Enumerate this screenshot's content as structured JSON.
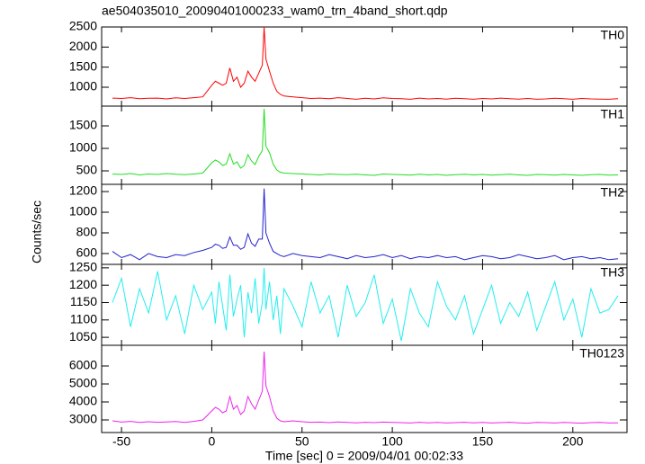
{
  "title": "ae504035010_20090401000233_wam0_trn_4band_short.qdp",
  "y_label": "Counts/sec",
  "x_label": "Time [sec] 0 = 2009/04/01 00:02:33",
  "chart_data": [
    {
      "type": "line",
      "label": "TH0",
      "color": "#ff0000",
      "x": [
        -55,
        -50,
        -45,
        -40,
        -35,
        -30,
        -25,
        -20,
        -15,
        -10,
        -5,
        0,
        2,
        4,
        6,
        8,
        10,
        12,
        14,
        16,
        18,
        20,
        22,
        24,
        26,
        28,
        29,
        30,
        32,
        34,
        36,
        38,
        40,
        45,
        50,
        55,
        60,
        65,
        70,
        75,
        80,
        85,
        90,
        95,
        100,
        105,
        110,
        115,
        120,
        125,
        130,
        135,
        140,
        145,
        150,
        155,
        160,
        165,
        170,
        175,
        180,
        185,
        190,
        195,
        200,
        205,
        210,
        215,
        220,
        225
      ],
      "values": [
        730,
        720,
        740,
        715,
        725,
        730,
        710,
        735,
        720,
        740,
        760,
        1050,
        1150,
        1100,
        1050,
        1100,
        1480,
        1150,
        1250,
        1000,
        1100,
        1400,
        1250,
        1150,
        1350,
        1550,
        2500,
        1700,
        1400,
        1100,
        900,
        820,
        780,
        760,
        740,
        720,
        730,
        715,
        740,
        720,
        700,
        725,
        710,
        735,
        720,
        715,
        700,
        730,
        710,
        720,
        705,
        725,
        715,
        700,
        720,
        710,
        730,
        715,
        705,
        720,
        700,
        710,
        725,
        715,
        700,
        720,
        710,
        705,
        700,
        715
      ],
      "xlim": [
        -61,
        230
      ],
      "xticks": [
        -50,
        0,
        50,
        100,
        150,
        200
      ],
      "ylim": [
        530,
        2500
      ],
      "yticks": [
        1000,
        1500,
        2000,
        2500
      ]
    },
    {
      "type": "line",
      "label": "TH1",
      "color": "#22dd22",
      "x": [
        -55,
        -50,
        -45,
        -40,
        -35,
        -30,
        -25,
        -20,
        -15,
        -10,
        -5,
        0,
        2,
        4,
        6,
        8,
        10,
        12,
        14,
        16,
        18,
        20,
        22,
        24,
        26,
        28,
        29,
        30,
        32,
        34,
        36,
        38,
        40,
        45,
        50,
        55,
        60,
        65,
        70,
        75,
        80,
        85,
        90,
        95,
        100,
        105,
        110,
        115,
        120,
        125,
        130,
        135,
        140,
        145,
        150,
        155,
        160,
        165,
        170,
        175,
        180,
        185,
        190,
        195,
        200,
        205,
        210,
        215,
        220,
        225
      ],
      "values": [
        430,
        420,
        440,
        410,
        430,
        420,
        440,
        425,
        415,
        430,
        450,
        680,
        740,
        700,
        620,
        650,
        880,
        650,
        700,
        560,
        620,
        860,
        720,
        640,
        820,
        950,
        1880,
        1050,
        900,
        650,
        520,
        470,
        450,
        440,
        430,
        420,
        410,
        430,
        420,
        415,
        425,
        410,
        400,
        430,
        420,
        415,
        405,
        425,
        410,
        420,
        400,
        415,
        425,
        410,
        420,
        405,
        415,
        425,
        410,
        400,
        420,
        415,
        405,
        420,
        410,
        400,
        415,
        420,
        405,
        410
      ],
      "xlim": [
        -61,
        230
      ],
      "xticks": [
        -50,
        0,
        50,
        100,
        150,
        200
      ],
      "ylim": [
        200,
        1940
      ],
      "yticks": [
        500,
        1000,
        1500
      ]
    },
    {
      "type": "line",
      "label": "TH2",
      "color": "#2222cc",
      "x": [
        -55,
        -50,
        -45,
        -40,
        -35,
        -30,
        -25,
        -20,
        -15,
        -10,
        -5,
        0,
        2,
        4,
        6,
        8,
        10,
        12,
        14,
        16,
        18,
        20,
        22,
        24,
        26,
        28,
        29,
        30,
        32,
        34,
        36,
        38,
        40,
        45,
        50,
        55,
        60,
        65,
        70,
        75,
        80,
        85,
        90,
        95,
        100,
        105,
        110,
        115,
        120,
        125,
        130,
        135,
        140,
        145,
        150,
        155,
        160,
        165,
        170,
        175,
        180,
        185,
        190,
        195,
        200,
        205,
        210,
        215,
        220,
        225
      ],
      "values": [
        620,
        560,
        590,
        540,
        600,
        570,
        560,
        590,
        580,
        610,
        630,
        660,
        690,
        680,
        650,
        660,
        760,
        680,
        680,
        640,
        660,
        790,
        700,
        670,
        740,
        740,
        1230,
        800,
        700,
        620,
        600,
        580,
        570,
        600,
        580,
        570,
        560,
        590,
        570,
        550,
        580,
        560,
        570,
        590,
        560,
        580,
        550,
        570,
        560,
        580,
        560,
        570,
        540,
        560,
        580,
        570,
        550,
        560,
        590,
        570,
        550,
        560,
        580,
        540,
        560,
        570,
        550,
        560,
        540,
        550
      ],
      "xlim": [
        -61,
        230
      ],
      "xticks": [
        -50,
        0,
        50,
        100,
        150,
        200
      ],
      "ylim": [
        495,
        1270
      ],
      "yticks": [
        600,
        800,
        1000,
        1200
      ]
    },
    {
      "type": "line",
      "label": "TH3",
      "color": "#22eeee",
      "x": [
        -55,
        -50,
        -45,
        -40,
        -35,
        -30,
        -25,
        -20,
        -15,
        -10,
        -5,
        0,
        2,
        4,
        6,
        8,
        10,
        12,
        14,
        16,
        18,
        20,
        22,
        24,
        26,
        28,
        29,
        30,
        32,
        34,
        36,
        38,
        40,
        45,
        50,
        55,
        60,
        65,
        70,
        75,
        80,
        85,
        90,
        95,
        100,
        105,
        110,
        115,
        120,
        125,
        130,
        135,
        140,
        145,
        150,
        155,
        160,
        165,
        170,
        175,
        180,
        185,
        190,
        195,
        200,
        205,
        210,
        215,
        220,
        225
      ],
      "values": [
        1150,
        1220,
        1080,
        1190,
        1120,
        1240,
        1100,
        1170,
        1060,
        1200,
        1130,
        1180,
        1090,
        1210,
        1140,
        1070,
        1230,
        1110,
        1160,
        1200,
        1050,
        1180,
        1120,
        1220,
        1090,
        1150,
        1250,
        1130,
        1210,
        1100,
        1170,
        1060,
        1190,
        1140,
        1080,
        1210,
        1120,
        1170,
        1050,
        1200,
        1110,
        1150,
        1230,
        1090,
        1160,
        1040,
        1190,
        1120,
        1080,
        1210,
        1140,
        1100,
        1170,
        1060,
        1130,
        1200,
        1090,
        1150,
        1110,
        1180,
        1070,
        1140,
        1210,
        1100,
        1160,
        1050,
        1190,
        1120,
        1130,
        1170
      ],
      "xlim": [
        -61,
        230
      ],
      "xticks": [
        -50,
        0,
        50,
        100,
        150,
        200
      ],
      "ylim": [
        1027,
        1260
      ],
      "yticks": [
        1050,
        1100,
        1150,
        1200,
        1250
      ]
    },
    {
      "type": "line",
      "label": "TH0123",
      "color": "#ee22ee",
      "x": [
        -55,
        -50,
        -45,
        -40,
        -35,
        -30,
        -25,
        -20,
        -15,
        -10,
        -5,
        0,
        2,
        4,
        6,
        8,
        10,
        12,
        14,
        16,
        18,
        20,
        22,
        24,
        26,
        28,
        29,
        30,
        32,
        34,
        36,
        38,
        40,
        45,
        50,
        55,
        60,
        65,
        70,
        75,
        80,
        85,
        90,
        95,
        100,
        105,
        110,
        115,
        120,
        125,
        130,
        135,
        140,
        145,
        150,
        155,
        160,
        165,
        170,
        175,
        180,
        185,
        190,
        195,
        200,
        205,
        210,
        215,
        220,
        225
      ],
      "values": [
        2950,
        2880,
        2920,
        2860,
        2900,
        2870,
        2890,
        2910,
        2860,
        2920,
        3000,
        3500,
        3700,
        3600,
        3400,
        3500,
        4300,
        3600,
        3800,
        3300,
        3500,
        4300,
        3900,
        3600,
        4100,
        4600,
        6800,
        4900,
        4300,
        3500,
        3100,
        2950,
        2900,
        2950,
        2900,
        2870,
        2880,
        2850,
        2890,
        2860,
        2840,
        2870,
        2850,
        2880,
        2860,
        2850,
        2830,
        2870,
        2840,
        2860,
        2830,
        2850,
        2870,
        2840,
        2860,
        2830,
        2850,
        2870,
        2840,
        2820,
        2860,
        2850,
        2830,
        2860,
        2840,
        2820,
        2850,
        2860,
        2830,
        2840
      ],
      "xlim": [
        -61,
        230
      ],
      "xticks": [
        -50,
        0,
        50,
        100,
        150,
        200
      ],
      "ylim": [
        2300,
        7150
      ],
      "yticks": [
        3000,
        4000,
        5000,
        6000
      ]
    }
  ]
}
